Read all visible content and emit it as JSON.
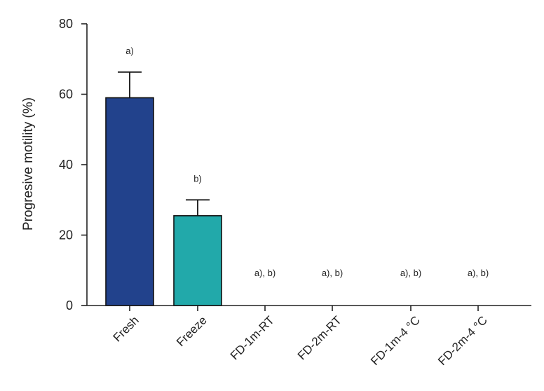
{
  "chart_data": {
    "type": "bar",
    "title": "",
    "xlabel": "",
    "ylabel": "Progresive motility (%)",
    "ylim": [
      0,
      80
    ],
    "yticks": [
      "0",
      "20",
      "40",
      "60",
      "80"
    ],
    "categories": [
      "Fresh",
      "Freeze",
      "FD-1m-RT",
      "FD-2m-RT",
      "FD-1m-4 °C",
      "FD-2m-4 °C"
    ],
    "values": [
      59,
      25.5,
      0,
      0,
      0,
      0
    ],
    "errors": [
      7.3,
      4.5,
      0,
      0,
      0,
      0
    ],
    "annotations": [
      "a)",
      "b)",
      "a), b)",
      "a), b)",
      "a), b)",
      "a), b)"
    ],
    "bar_colors": [
      "#22428c",
      "#22a9aa",
      "#ffffff",
      "#ffffff",
      "#ffffff",
      "#ffffff"
    ],
    "grid": false,
    "legend": "none"
  }
}
